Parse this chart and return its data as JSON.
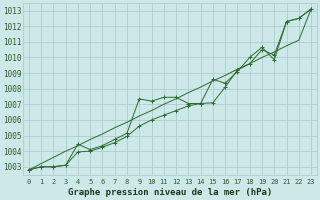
{
  "title": "Graphe pression niveau de la mer (hPa)",
  "x_labels": [
    "0",
    "1",
    "2",
    "3",
    "4",
    "5",
    "6",
    "7",
    "8",
    "9",
    "10",
    "11",
    "12",
    "13",
    "14",
    "15",
    "16",
    "17",
    "18",
    "19",
    "20",
    "21",
    "22",
    "23"
  ],
  "x_values": [
    0,
    1,
    2,
    3,
    4,
    5,
    6,
    7,
    8,
    9,
    10,
    11,
    12,
    13,
    14,
    15,
    16,
    17,
    18,
    19,
    20,
    21,
    22,
    23
  ],
  "line_straight": [
    1002.8,
    1003.2,
    1003.6,
    1004.0,
    1004.35,
    1004.75,
    1005.1,
    1005.5,
    1005.85,
    1006.25,
    1006.6,
    1007.0,
    1007.35,
    1007.75,
    1008.1,
    1008.5,
    1008.85,
    1009.25,
    1009.6,
    1010.0,
    1010.35,
    1010.75,
    1011.1,
    1013.1
  ],
  "line_upper": [
    1002.8,
    1003.0,
    1003.0,
    1003.1,
    1004.45,
    1004.1,
    1004.35,
    1004.75,
    1005.15,
    1007.35,
    1007.2,
    1007.45,
    1007.45,
    1007.05,
    1007.05,
    1008.6,
    1008.35,
    1009.1,
    1010.0,
    1010.65,
    1009.85,
    1012.3,
    1012.5,
    1013.1
  ],
  "line_lower": [
    1002.8,
    1003.0,
    1003.0,
    1003.1,
    1003.95,
    1004.0,
    1004.25,
    1004.55,
    1004.95,
    1005.6,
    1006.0,
    1006.3,
    1006.6,
    1006.9,
    1007.05,
    1007.1,
    1008.1,
    1009.2,
    1009.6,
    1010.5,
    1010.15,
    1012.3,
    1012.5,
    1013.1
  ],
  "ylim_min": 1002.5,
  "ylim_max": 1013.5,
  "yticks": [
    1003,
    1004,
    1005,
    1006,
    1007,
    1008,
    1009,
    1010,
    1011,
    1012,
    1013
  ],
  "line_color": "#2d6a2d",
  "bg_color": "#cce8e8",
  "grid_color": "#aac8c8",
  "title_color": "#1a3a1a",
  "tick_label_color": "#2d5a2d",
  "ylabel_fontsize": 5.5,
  "xlabel_fontsize": 5.0,
  "title_fontsize": 6.5
}
